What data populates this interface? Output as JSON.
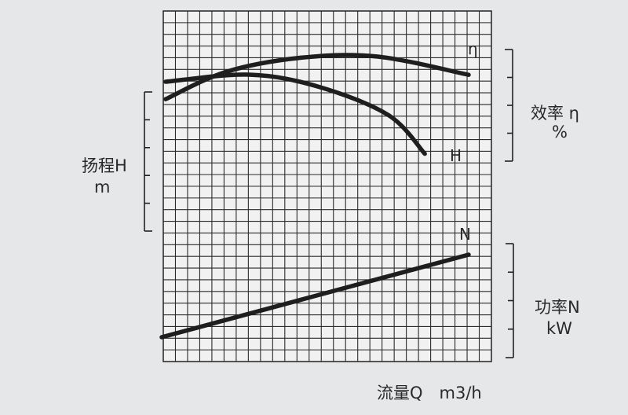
{
  "chart_data": {
    "type": "line",
    "title": "",
    "xlabel": "流量Q m3/h",
    "grid": true,
    "left_axis": {
      "name": "扬程H",
      "unit": "m"
    },
    "right_axis_top": {
      "name": "效率 η",
      "unit": "%"
    },
    "right_axis_bottom": {
      "name": "功率N",
      "unit": "kW"
    },
    "series": [
      {
        "name": "η",
        "axis": "efficiency",
        "x": [
          0,
          0.2,
          0.45,
          0.7,
          1.0
        ],
        "values": [
          0.58,
          0.85,
          0.99,
          1.0,
          0.82
        ]
      },
      {
        "name": "H",
        "axis": "head",
        "x": [
          0,
          0.3,
          0.55,
          0.8,
          0.93
        ],
        "values": [
          0.93,
          1.0,
          0.88,
          0.6,
          0.22
        ]
      },
      {
        "name": "N",
        "axis": "power",
        "x": [
          0,
          1.0
        ],
        "values": [
          0.0,
          1.0
        ]
      }
    ]
  },
  "labels": {
    "head": "扬程H",
    "head_unit": "m",
    "eff": "效率 η",
    "eff_unit": "%",
    "power": "功率N",
    "power_unit": "kW",
    "xaxis": "流量Q　m3/h",
    "curve_eta": "η",
    "curve_h": "H",
    "curve_n": "N"
  }
}
